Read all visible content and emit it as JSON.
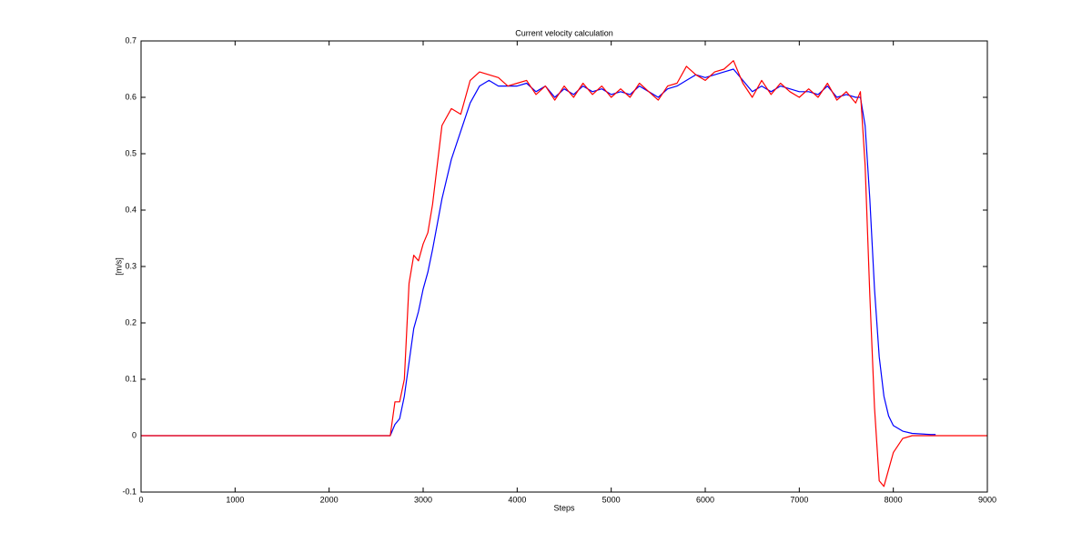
{
  "chart_data": {
    "type": "line",
    "title": "Current velocity calculation",
    "x_label": "Steps",
    "y_label": "[m/s]",
    "x": [
      0,
      2650,
      2700,
      2750,
      2800,
      2850,
      2900,
      2950,
      3000,
      3050,
      3100,
      3200,
      3300,
      3400,
      3500,
      3600,
      3700,
      3800,
      3900,
      4000,
      4100,
      4200,
      4300,
      4400,
      4500,
      4600,
      4700,
      4800,
      4900,
      5000,
      5100,
      5200,
      5300,
      5400,
      5500,
      5600,
      5700,
      5800,
      5900,
      6000,
      6100,
      6200,
      6300,
      6400,
      6500,
      6600,
      6700,
      6800,
      6900,
      7000,
      7100,
      7200,
      7300,
      7400,
      7500,
      7600,
      7650,
      7700,
      7750,
      7800,
      7850,
      7900,
      7950,
      8000,
      8100,
      8200,
      8300,
      8400,
      8450,
      8500,
      8600,
      8700,
      8800,
      8900,
      9000
    ],
    "series": [
      {
        "color": "#0000ff",
        "values": [
          0,
          0,
          0.02,
          0.03,
          0.07,
          0.13,
          0.19,
          0.22,
          0.26,
          0.29,
          0.33,
          0.42,
          0.49,
          0.54,
          0.59,
          0.62,
          0.63,
          0.62,
          0.62,
          0.62,
          0.625,
          0.61,
          0.62,
          0.6,
          0.615,
          0.605,
          0.62,
          0.61,
          0.615,
          0.605,
          0.61,
          0.605,
          0.62,
          0.61,
          0.6,
          0.615,
          0.62,
          0.63,
          0.64,
          0.635,
          0.64,
          0.645,
          0.65,
          0.63,
          0.61,
          0.62,
          0.61,
          0.62,
          0.615,
          0.61,
          0.61,
          0.605,
          0.62,
          0.6,
          0.605,
          0.6,
          0.6,
          0.55,
          0.42,
          0.26,
          0.14,
          0.07,
          0.035,
          0.018,
          0.008,
          0.004,
          0.003,
          0.002,
          0.002,
          null,
          null,
          null,
          null,
          null,
          null
        ]
      },
      {
        "color": "#ff0000",
        "values": [
          0,
          0,
          0.06,
          0.06,
          0.1,
          0.27,
          0.32,
          0.31,
          0.34,
          0.36,
          0.41,
          0.55,
          0.58,
          0.57,
          0.63,
          0.645,
          0.64,
          0.635,
          0.62,
          0.625,
          0.63,
          0.605,
          0.62,
          0.595,
          0.62,
          0.6,
          0.625,
          0.605,
          0.62,
          0.6,
          0.615,
          0.6,
          0.625,
          0.61,
          0.595,
          0.62,
          0.625,
          0.655,
          0.64,
          0.63,
          0.645,
          0.65,
          0.665,
          0.625,
          0.6,
          0.63,
          0.605,
          0.625,
          0.61,
          0.6,
          0.615,
          0.6,
          0.625,
          0.595,
          0.61,
          0.59,
          0.61,
          0.48,
          0.25,
          0.05,
          -0.08,
          -0.09,
          -0.06,
          -0.03,
          -0.005,
          0,
          0,
          0,
          0,
          0,
          0,
          0,
          0,
          0,
          0
        ]
      }
    ],
    "xlim": [
      0,
      9000
    ],
    "xticks": [
      0,
      1000,
      2000,
      3000,
      4000,
      5000,
      6000,
      7000,
      8000,
      9000
    ],
    "ylim": [
      -0.1,
      0.7
    ],
    "yticks": [
      -0.1,
      0,
      0.1,
      0.2,
      0.3,
      0.4,
      0.5,
      0.6,
      0.7
    ],
    "grid": false
  }
}
